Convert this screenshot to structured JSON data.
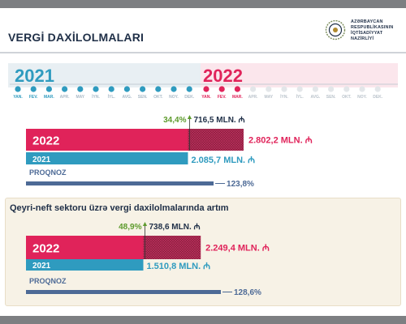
{
  "header": {
    "title": "VERGİ DAXİLOLMALARI",
    "ministry_lines": [
      "AZƏRBAYCAN",
      "RESPUBLİKASININ",
      "İQTİSADİYYAT",
      "NAZİRLİYİ"
    ]
  },
  "timeline": {
    "year1": "2021",
    "year2": "2022",
    "months": [
      "YAN.",
      "FEV.",
      "MAR.",
      "APR.",
      "MAY",
      "İYN.",
      "İYL.",
      "AVG.",
      "SEN.",
      "OKT.",
      "NOY.",
      "DEK."
    ],
    "highlighted_months": 3
  },
  "section2": {
    "title": "Qeyri-neft sektoru üzrə vergi daxilolmalarında artım"
  },
  "colors": {
    "y2022": "#e0235a",
    "y2021": "#2f9bbf",
    "forecast": "#4d6a96",
    "growth": "#5e9b2d",
    "navy": "#1f2f47"
  },
  "chart_data": [
    {
      "type": "bar",
      "series": [
        {
          "name": "2022",
          "value": 2802.2,
          "label": "2.802,2 MLN."
        },
        {
          "name": "2021",
          "value": 2085.7,
          "label": "2.085,7 MLN."
        },
        {
          "name": "PROQNOZ",
          "value": 123.8,
          "label": "123,8%"
        }
      ],
      "growth": {
        "percent": 34.4,
        "percent_label": "34,4%",
        "amount": 716.5,
        "amount_label": "716,5 MLN."
      }
    },
    {
      "type": "bar",
      "title": "Qeyri-neft sektoru üzrə vergi daxilolmalarında artım",
      "series": [
        {
          "name": "2022",
          "value": 2249.4,
          "label": "2.249,4 MLN."
        },
        {
          "name": "2021",
          "value": 1510.8,
          "label": "1.510,8 MLN."
        },
        {
          "name": "PROQNOZ",
          "value": 128.6,
          "label": "128,6%"
        }
      ],
      "growth": {
        "percent": 48.9,
        "percent_label": "48,9%",
        "amount": 738.6,
        "amount_label": "738,6 MLN."
      }
    }
  ]
}
